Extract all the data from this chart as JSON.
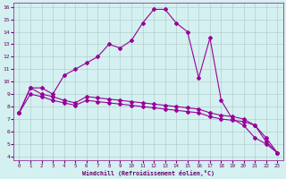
{
  "xlabel": "Windchill (Refroidissement éolien,°C)",
  "line_main_x": [
    0,
    1,
    2,
    3,
    4,
    5,
    6,
    7,
    8,
    9,
    10,
    11,
    12,
    13,
    14,
    15,
    16,
    17,
    18,
    19,
    20,
    21,
    22,
    23
  ],
  "line_main_y": [
    7.5,
    9.5,
    9.5,
    9.0,
    10.5,
    11.0,
    11.5,
    12.0,
    13.0,
    12.7,
    13.3,
    14.7,
    15.8,
    15.8,
    14.7,
    14.0,
    10.3,
    13.5,
    8.5,
    7.0,
    6.5,
    5.5,
    5.0,
    4.3
  ],
  "line_flat1_x": [
    0,
    1,
    2,
    3,
    4,
    5,
    6,
    7,
    8,
    9,
    10,
    11,
    12,
    13,
    14,
    15,
    16,
    17,
    18,
    19,
    20,
    21,
    22,
    23
  ],
  "line_flat1_y": [
    7.5,
    9.5,
    9.0,
    8.8,
    8.5,
    8.3,
    8.8,
    8.7,
    8.6,
    8.5,
    8.4,
    8.3,
    8.2,
    8.1,
    8.0,
    7.9,
    7.8,
    7.5,
    7.3,
    7.2,
    7.0,
    6.5,
    5.5,
    4.3
  ],
  "line_flat2_x": [
    0,
    1,
    2,
    3,
    4,
    5,
    6,
    7,
    8,
    9,
    10,
    11,
    12,
    13,
    14,
    15,
    16,
    17,
    18,
    19,
    20,
    21,
    22,
    23
  ],
  "line_flat2_y": [
    7.5,
    9.0,
    8.8,
    8.5,
    8.3,
    8.1,
    8.5,
    8.4,
    8.3,
    8.2,
    8.1,
    8.0,
    7.9,
    7.8,
    7.7,
    7.6,
    7.5,
    7.2,
    7.0,
    6.9,
    6.8,
    6.5,
    5.2,
    4.3
  ],
  "ylim": [
    4,
    16
  ],
  "xlim": [
    -0.5,
    23.5
  ],
  "yticks": [
    4,
    5,
    6,
    7,
    8,
    9,
    10,
    11,
    12,
    13,
    14,
    15,
    16
  ],
  "xticks": [
    0,
    1,
    2,
    3,
    4,
    5,
    6,
    7,
    8,
    9,
    10,
    11,
    12,
    13,
    14,
    15,
    16,
    17,
    18,
    19,
    20,
    21,
    22,
    23
  ],
  "line_color": "#990099",
  "bg_color": "#d4f0f0",
  "grid_color": "#b0c8c8",
  "marker": "D",
  "marker_size": 2,
  "line_width": 0.8
}
